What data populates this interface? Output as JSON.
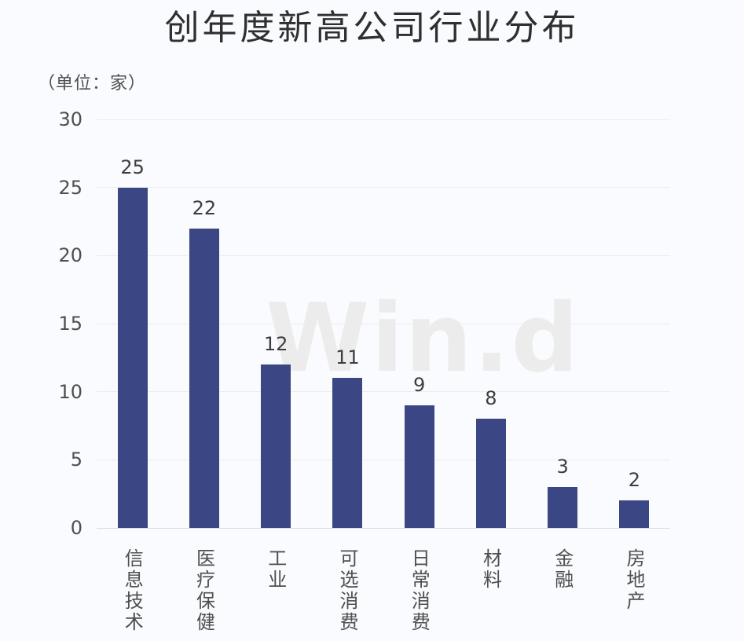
{
  "chart_data": {
    "type": "bar",
    "title": "创年度新高公司行业分布",
    "unit_label": "（单位：家）",
    "categories": [
      "信息技术",
      "医疗保健",
      "工业",
      "可选消费",
      "日常消费",
      "材料",
      "金融",
      "房地产"
    ],
    "values": [
      25,
      22,
      12,
      11,
      9,
      8,
      3,
      2
    ],
    "xlabel": "",
    "ylabel": "",
    "ylim": [
      0,
      30
    ],
    "yticks": [
      0,
      5,
      10,
      15,
      20,
      25,
      30
    ],
    "grid": "horizontal-on",
    "legend": "none",
    "watermark": "Win.d"
  },
  "colors": {
    "bar": "#3b4784",
    "title_text": "#2f2f2f",
    "axis_text": "#4f4f4f",
    "value_text": "#3d3d3d",
    "gridline": "#ececec",
    "baseline": "#d9d9d9",
    "watermark": "#ececec",
    "background": "#fafbfe"
  }
}
